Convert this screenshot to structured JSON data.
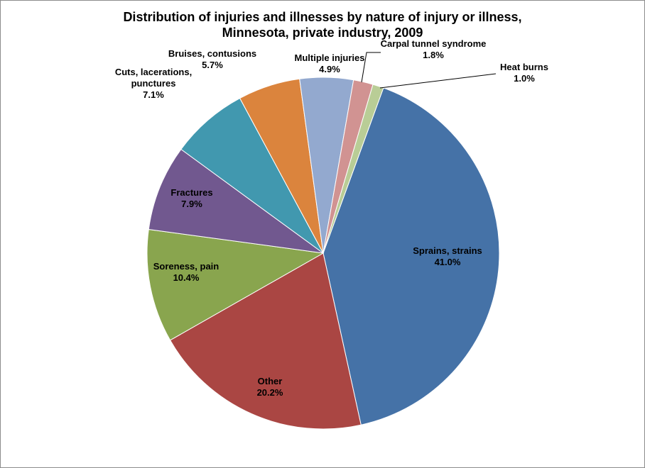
{
  "chart_data": {
    "type": "pie",
    "title_line1": "Distribution of injuries and illnesses by nature of injury or illness,",
    "title_line2": "Minnesota, private industry, 2009",
    "slices": [
      {
        "label": [
          "Sprains, strains"
        ],
        "value": 41.0,
        "pct_label": "41.0%",
        "color": "#4572a7"
      },
      {
        "label": [
          "Other"
        ],
        "value": 20.2,
        "pct_label": "20.2%",
        "color": "#aa4643"
      },
      {
        "label": [
          "Soreness, pain"
        ],
        "value": 10.4,
        "pct_label": "10.4%",
        "color": "#89a54e"
      },
      {
        "label": [
          "Fractures"
        ],
        "value": 7.9,
        "pct_label": "7.9%",
        "color": "#71588f"
      },
      {
        "label": [
          "Cuts, lacerations,",
          "punctures"
        ],
        "value": 7.1,
        "pct_label": "7.1%",
        "color": "#4198af"
      },
      {
        "label": [
          "Bruises, contusions"
        ],
        "value": 5.7,
        "pct_label": "5.7%",
        "color": "#db843d"
      },
      {
        "label": [
          "Multiple injuries"
        ],
        "value": 4.9,
        "pct_label": "4.9%",
        "color": "#93a9cf"
      },
      {
        "label": [
          "Carpal tunnel syndrome"
        ],
        "value": 1.8,
        "pct_label": "1.8%",
        "color": "#d19392"
      },
      {
        "label": [
          "Heat burns"
        ],
        "value": 1.0,
        "pct_label": "1.0%",
        "color": "#b9cd96"
      }
    ]
  }
}
